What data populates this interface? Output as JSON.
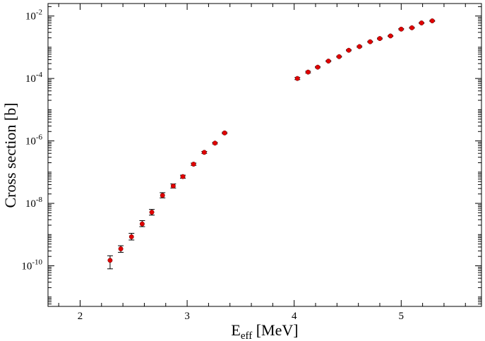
{
  "chart_data": {
    "type": "scatter",
    "title": "",
    "xlabel": {
      "main": "E",
      "sub": "eff",
      "rest": " [MeV]"
    },
    "ylabel": "Cross section [b]",
    "xlim": [
      1.7,
      5.75
    ],
    "ylim_log10": [
      -11.3,
      -1.6
    ],
    "yscale": "log",
    "x_ticks": [
      2,
      3,
      4,
      5
    ],
    "x_tick_labels": [
      "2",
      "3",
      "4",
      "5"
    ],
    "y_ticks_exp": [
      -10,
      -8,
      -6,
      -4,
      -2
    ],
    "y_tick_labels": [
      {
        "base": "10",
        "exp": "-10"
      },
      {
        "base": "10",
        "exp": "-8"
      },
      {
        "base": "10",
        "exp": "-6"
      },
      {
        "base": "10",
        "exp": "-4"
      },
      {
        "base": "10",
        "exp": "-2"
      }
    ],
    "grid": false,
    "marker_color": "#e00000",
    "errorbar_color": "#000000",
    "series": [
      {
        "points": [
          {
            "x": 2.28,
            "y": 1.5e-10,
            "ylo": 8e-11,
            "yhi": 2.1e-10
          },
          {
            "x": 2.38,
            "y": 3.5e-10,
            "ylo": 2.7e-10,
            "yhi": 4.4e-10
          },
          {
            "x": 2.48,
            "y": 8.5e-10,
            "ylo": 6.7e-10,
            "yhi": 1.1e-09
          },
          {
            "x": 2.58,
            "y": 2.2e-09,
            "ylo": 1.8e-09,
            "yhi": 2.8e-09
          },
          {
            "x": 2.67,
            "y": 5.2e-09,
            "ylo": 4.2e-09,
            "yhi": 6.4e-09
          },
          {
            "x": 2.77,
            "y": 1.8e-08,
            "ylo": 1.5e-08,
            "yhi": 2.2e-08
          },
          {
            "x": 2.87,
            "y": 3.6e-08,
            "ylo": 3.1e-08,
            "yhi": 4.2e-08
          },
          {
            "x": 2.96,
            "y": 7.2e-08,
            "ylo": 6.4e-08,
            "yhi": 8e-08
          },
          {
            "x": 3.06,
            "y": 1.8e-07,
            "ylo": 1.65e-07,
            "yhi": 1.95e-07
          },
          {
            "x": 3.16,
            "y": 4.3e-07,
            "ylo": 4e-07,
            "yhi": 4.6e-07
          },
          {
            "x": 3.26,
            "y": 8.5e-07,
            "ylo": 8e-07,
            "yhi": 9e-07
          },
          {
            "x": 3.35,
            "y": 1.8e-06,
            "ylo": 1.7e-06,
            "yhi": 1.9e-06
          },
          {
            "x": 4.03,
            "y": 0.0001,
            "ylo": 9.2e-05,
            "yhi": 0.000108
          },
          {
            "x": 4.13,
            "y": 0.00016,
            "ylo": 0.00015,
            "yhi": 0.00017
          },
          {
            "x": 4.22,
            "y": 0.00023,
            "ylo": 0.00022,
            "yhi": 0.00024
          },
          {
            "x": 4.32,
            "y": 0.00036,
            "ylo": 0.000345,
            "yhi": 0.000375
          },
          {
            "x": 4.42,
            "y": 0.0005,
            "ylo": 0.00048,
            "yhi": 0.00052
          },
          {
            "x": 4.51,
            "y": 0.0008,
            "ylo": 0.00077,
            "yhi": 0.00083
          },
          {
            "x": 4.61,
            "y": 0.00105,
            "ylo": 0.001,
            "yhi": 0.0011
          },
          {
            "x": 4.71,
            "y": 0.0015,
            "ylo": 0.00144,
            "yhi": 0.00156
          },
          {
            "x": 4.8,
            "y": 0.0019,
            "ylo": 0.00183,
            "yhi": 0.00197
          },
          {
            "x": 4.9,
            "y": 0.0023,
            "ylo": 0.00222,
            "yhi": 0.00238
          },
          {
            "x": 5.0,
            "y": 0.0038,
            "ylo": 0.00365,
            "yhi": 0.00395
          },
          {
            "x": 5.1,
            "y": 0.0042,
            "ylo": 0.00405,
            "yhi": 0.00435
          },
          {
            "x": 5.19,
            "y": 0.006,
            "ylo": 0.0058,
            "yhi": 0.0062
          },
          {
            "x": 5.29,
            "y": 0.007,
            "ylo": 0.00675,
            "yhi": 0.00725
          }
        ]
      }
    ]
  }
}
